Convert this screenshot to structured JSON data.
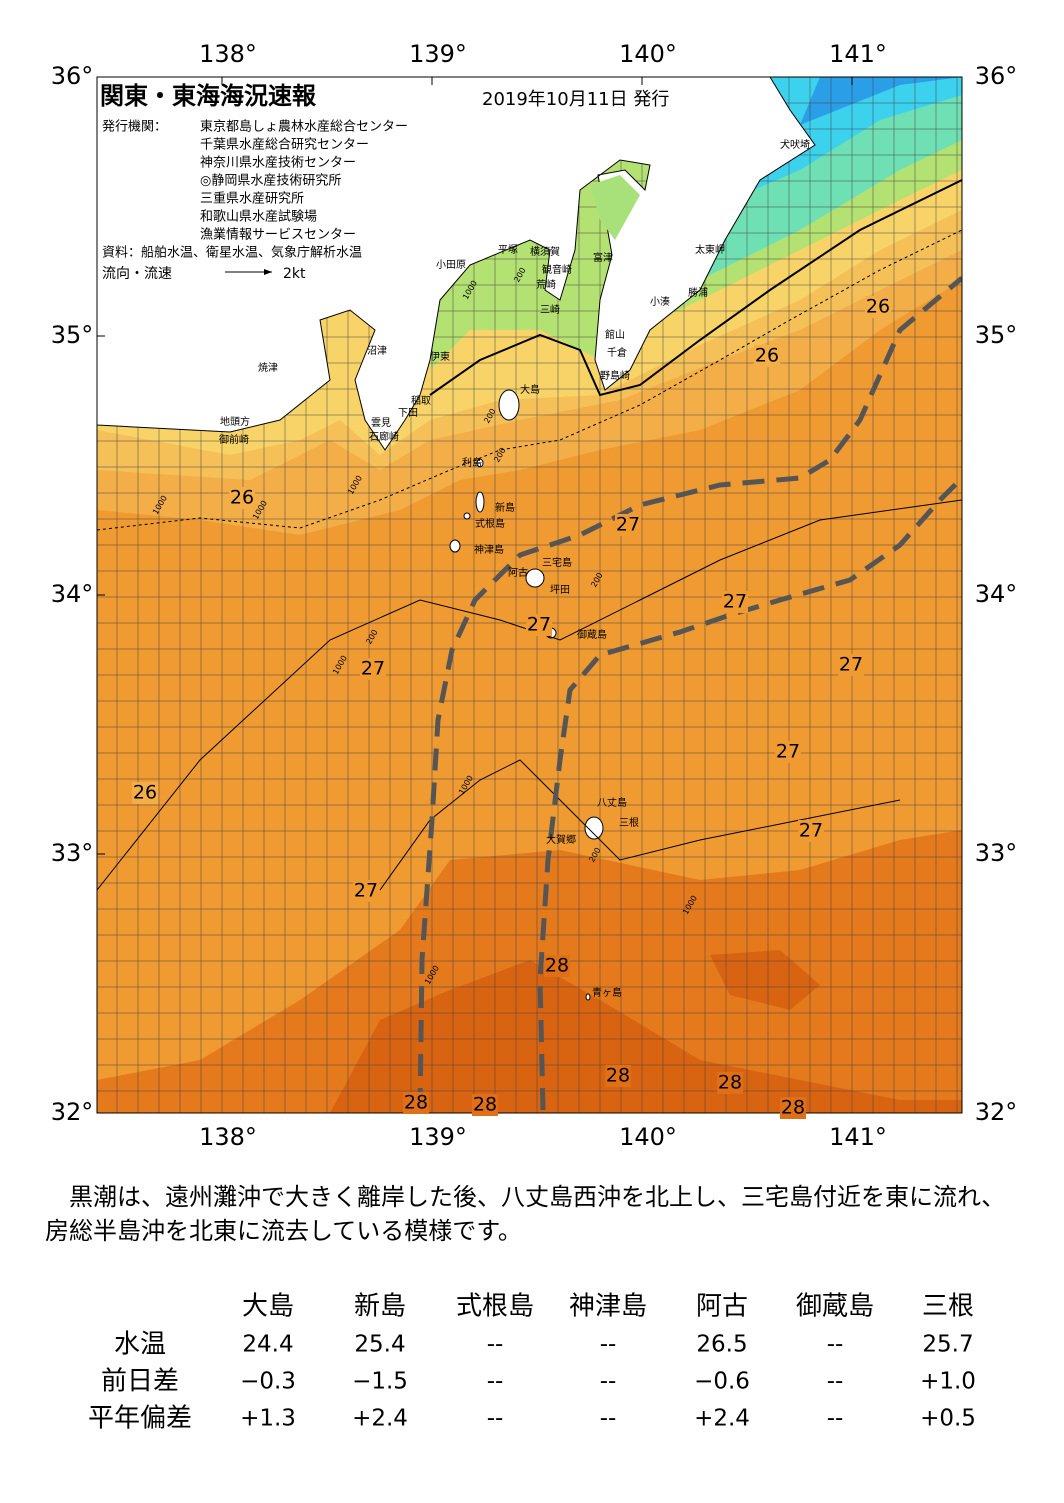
{
  "header": {
    "title": "関東・東海海況速報",
    "date": "2019年10月11日 発行",
    "issuer_label": "発行機関：",
    "issuers": [
      "東京都島しょ農林水産総合センター",
      "千葉県水産総合研究センター",
      "神奈川県水産技術センター",
      "◎静岡県水産技術研究所",
      "三重県水産研究所",
      "和歌山県水産試験場",
      "漁業情報サービスセンター"
    ],
    "sources": "資料：船舶水温、衛星水温、気象庁解析水温",
    "legend_label": "流向・流速",
    "legend_speed": "2kt"
  },
  "map": {
    "lon_ticks": [
      {
        "value": 138,
        "label": "138°"
      },
      {
        "value": 139,
        "label": "139°"
      },
      {
        "value": 140,
        "label": "140°"
      },
      {
        "value": 141,
        "label": "141°"
      }
    ],
    "lat_ticks": [
      {
        "value": 36,
        "label": "36°"
      },
      {
        "value": 35,
        "label": "35°"
      },
      {
        "value": 34,
        "label": "34°"
      },
      {
        "value": 33,
        "label": "33°"
      },
      {
        "value": 32,
        "label": "32°"
      }
    ],
    "places": [
      "犬吠埼",
      "太東岬",
      "勝浦",
      "小湊",
      "館山",
      "千倉",
      "野島崎",
      "富津",
      "横須賀",
      "観音崎",
      "平塚",
      "小田原",
      "荒崎",
      "三崎",
      "沼津",
      "伊東",
      "焼津",
      "稲取",
      "下田",
      "雲見",
      "石廊崎",
      "地頭方",
      "御前崎",
      "大島",
      "利島",
      "新島",
      "式根島",
      "神津島",
      "三宅島",
      "阿古",
      "坪田",
      "御蔵島",
      "八丈島",
      "三根",
      "大賀郷",
      "青ヶ島"
    ],
    "isotherm_labels": [
      "26",
      "26",
      "26",
      "26",
      "27",
      "27",
      "27",
      "27",
      "27",
      "27",
      "27",
      "27",
      "28",
      "28",
      "28",
      "28",
      "28",
      "28"
    ],
    "depth_labels": [
      "1000",
      "200",
      "200",
      "1000",
      "200",
      "1000",
      "1000",
      "200",
      "1000",
      "200",
      "1000",
      "1000",
      "1000",
      "200"
    ]
  },
  "summary": "黒潮は、遠州灘沖で大きく離岸した後、八丈島西沖を北上し、三宅島付近を東に流れ、房総半島沖を北東に流去している模様です。",
  "table": {
    "columns": [
      "大島",
      "新島",
      "式根島",
      "神津島",
      "阿古",
      "御蔵島",
      "三根"
    ],
    "rows": [
      [
        "水温",
        "24.4",
        "25.4",
        "--",
        "--",
        "26.5",
        "--",
        "25.7"
      ],
      [
        "前日差",
        "−0.3",
        "−1.5",
        "--",
        "--",
        "−0.6",
        "--",
        "+1.0"
      ],
      [
        "平年偏差",
        "+1.3",
        "+2.4",
        "--",
        "--",
        "+2.4",
        "--",
        "+0.5"
      ]
    ]
  }
}
